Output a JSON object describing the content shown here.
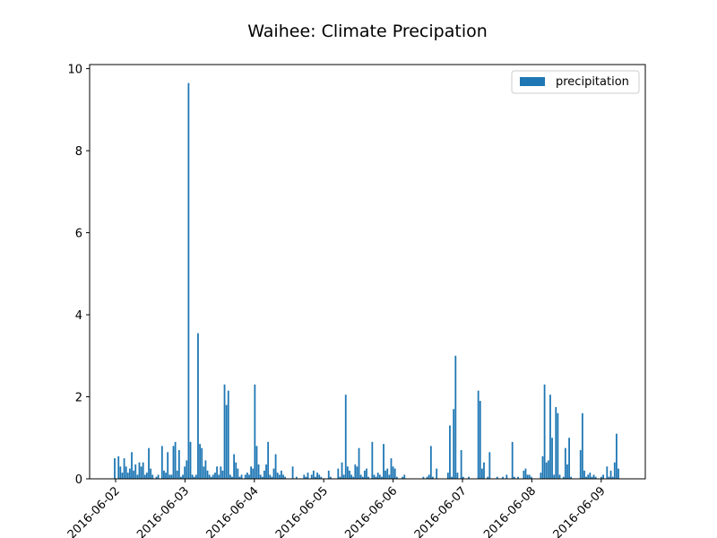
{
  "chart_data": {
    "type": "bar",
    "title": "Waihee: Climate Precipation",
    "xlabel": "",
    "ylabel": "",
    "ylim": [
      0,
      10.1
    ],
    "yticks": [
      0,
      2,
      4,
      6,
      8,
      10
    ],
    "xticks": [
      "2016-06-02",
      "2016-06-03",
      "2016-06-04",
      "2016-06-05",
      "2016-06-06",
      "2016-06-07",
      "2016-06-08",
      "2016-06-09"
    ],
    "grid": false,
    "legend": {
      "position": "top-right",
      "entries": [
        "precipitation"
      ]
    },
    "colors": {
      "bar": "#1f77b4",
      "axis": "#000000"
    },
    "series": [
      {
        "name": "precipitation",
        "values": [
          0.5,
          0.0,
          0.55,
          0.3,
          0.15,
          0.5,
          0.3,
          0.15,
          0.25,
          0.65,
          0.2,
          0.35,
          0.1,
          0.4,
          0.3,
          0.4,
          0.1,
          0.15,
          0.75,
          0.25,
          0.1,
          0.0,
          0.05,
          0.1,
          0.0,
          0.8,
          0.2,
          0.15,
          0.65,
          0.1,
          0.1,
          0.8,
          0.9,
          0.2,
          0.7,
          0.05,
          0.1,
          0.3,
          0.45,
          9.65,
          0.9,
          0.1,
          0.05,
          0.1,
          3.55,
          0.85,
          0.75,
          0.3,
          0.45,
          0.2,
          0.1,
          0.05,
          0.1,
          0.15,
          0.3,
          0.1,
          0.3,
          0.2,
          2.3,
          1.8,
          2.15,
          0.1,
          0.05,
          0.6,
          0.4,
          0.25,
          0.05,
          0.1,
          0.0,
          0.1,
          0.15,
          0.1,
          0.3,
          0.25,
          2.3,
          0.8,
          0.35,
          0.1,
          0.05,
          0.2,
          0.35,
          0.9,
          0.1,
          0.05,
          0.25,
          0.6,
          0.15,
          0.1,
          0.2,
          0.1,
          0.05,
          0.0,
          0.0,
          0.0,
          0.3,
          0.0,
          0.05,
          0.0,
          0.0,
          0.0,
          0.1,
          0.05,
          0.15,
          0.0,
          0.1,
          0.2,
          0.05,
          0.15,
          0.1,
          0.05,
          0.0,
          0.0,
          0.0,
          0.2,
          0.05,
          0.0,
          0.0,
          0.0,
          0.25,
          0.05,
          0.4,
          0.1,
          2.05,
          0.3,
          0.2,
          0.1,
          0.05,
          0.35,
          0.3,
          0.75,
          0.1,
          0.05,
          0.2,
          0.25,
          0.05,
          0.0,
          0.9,
          0.1,
          0.05,
          0.15,
          0.1,
          0.05,
          0.85,
          0.2,
          0.25,
          0.1,
          0.5,
          0.3,
          0.25,
          0.05,
          0.0,
          0.0,
          0.05,
          0.1,
          0.0,
          0.0,
          0.0,
          0.0,
          0.0,
          0.0,
          0.0,
          0.0,
          0.0,
          0.05,
          0.0,
          0.05,
          0.1,
          0.8,
          0.05,
          0.0,
          0.25,
          0.0,
          0.0,
          0.0,
          0.0,
          0.0,
          0.15,
          1.3,
          0.05,
          1.7,
          3.0,
          0.15,
          0.0,
          0.7,
          0.05,
          0.0,
          0.0,
          0.05,
          0.0,
          0.0,
          0.0,
          0.0,
          2.15,
          1.9,
          0.25,
          0.4,
          0.0,
          0.05,
          0.65,
          0.0,
          0.0,
          0.0,
          0.05,
          0.0,
          0.0,
          0.05,
          0.0,
          0.1,
          0.0,
          0.0,
          0.9,
          0.05,
          0.0,
          0.05,
          0.0,
          0.0,
          0.2,
          0.25,
          0.1,
          0.1,
          0.05,
          0.0,
          0.0,
          0.0,
          0.0,
          0.15,
          0.55,
          2.3,
          0.4,
          0.45,
          2.05,
          1.0,
          0.1,
          1.75,
          1.6,
          0.1,
          0.0,
          0.05,
          0.75,
          0.35,
          1.0,
          0.05,
          0.0,
          0.0,
          0.0,
          0.0,
          0.7,
          1.6,
          0.2,
          0.05,
          0.1,
          0.15,
          0.05,
          0.1,
          0.05,
          0.0,
          0.0,
          0.05,
          0.1,
          0.0,
          0.3,
          0.05,
          0.2,
          0.05,
          0.4,
          1.1,
          0.25
        ]
      }
    ]
  }
}
